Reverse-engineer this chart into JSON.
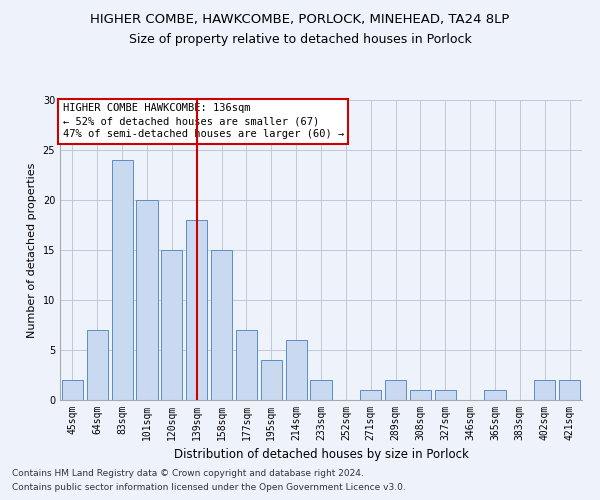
{
  "title1": "HIGHER COMBE, HAWKCOMBE, PORLOCK, MINEHEAD, TA24 8LP",
  "title2": "Size of property relative to detached houses in Porlock",
  "xlabel": "Distribution of detached houses by size in Porlock",
  "ylabel": "Number of detached properties",
  "categories": [
    "45sqm",
    "64sqm",
    "83sqm",
    "101sqm",
    "120sqm",
    "139sqm",
    "158sqm",
    "177sqm",
    "195sqm",
    "214sqm",
    "233sqm",
    "252sqm",
    "271sqm",
    "289sqm",
    "308sqm",
    "327sqm",
    "346sqm",
    "365sqm",
    "383sqm",
    "402sqm",
    "421sqm"
  ],
  "values": [
    2,
    7,
    24,
    20,
    15,
    18,
    15,
    7,
    4,
    6,
    2,
    0,
    1,
    2,
    1,
    1,
    0,
    1,
    0,
    2,
    2
  ],
  "bar_color": "#c9d9f0",
  "bar_edgecolor": "#5b8ec4",
  "vline_x_index": 5,
  "vline_color": "#cc0000",
  "annotation_text": "HIGHER COMBE HAWKCOMBE: 136sqm\n← 52% of detached houses are smaller (67)\n47% of semi-detached houses are larger (60) →",
  "annotation_box_color": "#ffffff",
  "annotation_box_edgecolor": "#cc0000",
  "ylim": [
    0,
    30
  ],
  "yticks": [
    0,
    5,
    10,
    15,
    20,
    25,
    30
  ],
  "grid_color": "#c0c8d8",
  "footnote1": "Contains HM Land Registry data © Crown copyright and database right 2024.",
  "footnote2": "Contains public sector information licensed under the Open Government Licence v3.0.",
  "bg_color": "#eef2fa",
  "title1_fontsize": 9.5,
  "title2_fontsize": 9,
  "xlabel_fontsize": 8.5,
  "ylabel_fontsize": 8,
  "tick_fontsize": 7,
  "annotation_fontsize": 7.5,
  "footnote_fontsize": 6.5
}
